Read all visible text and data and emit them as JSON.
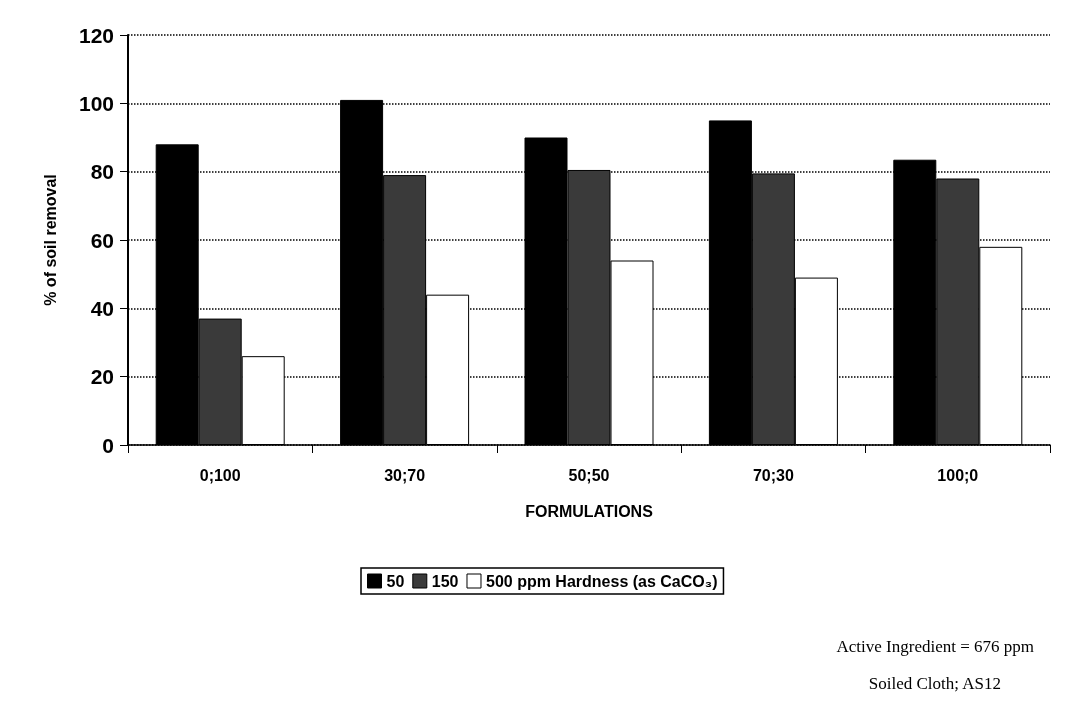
{
  "chart_data": {
    "type": "bar",
    "xlabel": "FORMULATIONS",
    "ylabel": "% of soil removal",
    "categories": [
      "0;100",
      "30;70",
      "50;50",
      "70;30",
      "100;0"
    ],
    "series": [
      {
        "name": "50",
        "color": "#000000",
        "values": [
          88,
          101,
          90,
          95,
          83.5
        ]
      },
      {
        "name": "150",
        "color": "#3a3a3a",
        "values": [
          37,
          79,
          80.5,
          79.5,
          78
        ]
      },
      {
        "name": "500 ppm Hardness (as CaCO₃)",
        "color": "#ffffff",
        "values": [
          26,
          44,
          54,
          49,
          58
        ]
      }
    ],
    "ylim": [
      0,
      120
    ],
    "yticks": [
      0,
      20,
      40,
      60,
      80,
      100,
      120
    ],
    "grid": "y",
    "legend": "bottom",
    "annotations": [
      "Active Ingredient = 676 ppm",
      "Soiled Cloth; AS12"
    ]
  }
}
